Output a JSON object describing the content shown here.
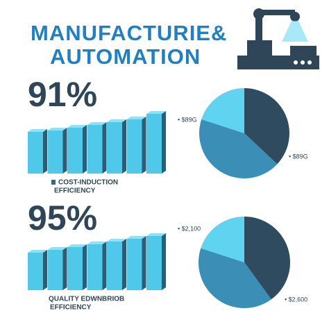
{
  "header": {
    "title_line1": "MANUFACTURIE&",
    "title_line2": "AUTOMATION"
  },
  "panels": [
    {
      "stat": "91%",
      "legend_line1": "COST-INDUCTION",
      "legend_line2": "EFFICIENCY",
      "bars": [
        60,
        62,
        66,
        70,
        74,
        78,
        86
      ],
      "pie": {
        "values": [
          37,
          43,
          20
        ],
        "colors": [
          "#2f4b5f",
          "#3b8fb6",
          "#5fd3ef"
        ]
      },
      "pie_label_left": "• $89G",
      "pie_label_right": "• $89G"
    },
    {
      "stat": "95%",
      "legend_line1": "QUALITY EDWNBRIOB",
      "legend_line2": "EFFICIENCY",
      "bars": [
        54,
        58,
        62,
        66,
        70,
        74,
        78
      ],
      "pie": {
        "values": [
          40,
          40,
          20
        ],
        "colors": [
          "#2f4b5f",
          "#3b8fb6",
          "#5fd3ef"
        ]
      },
      "pie_label_left": "• $2,100",
      "pie_label_right": "• $2,600"
    }
  ]
}
